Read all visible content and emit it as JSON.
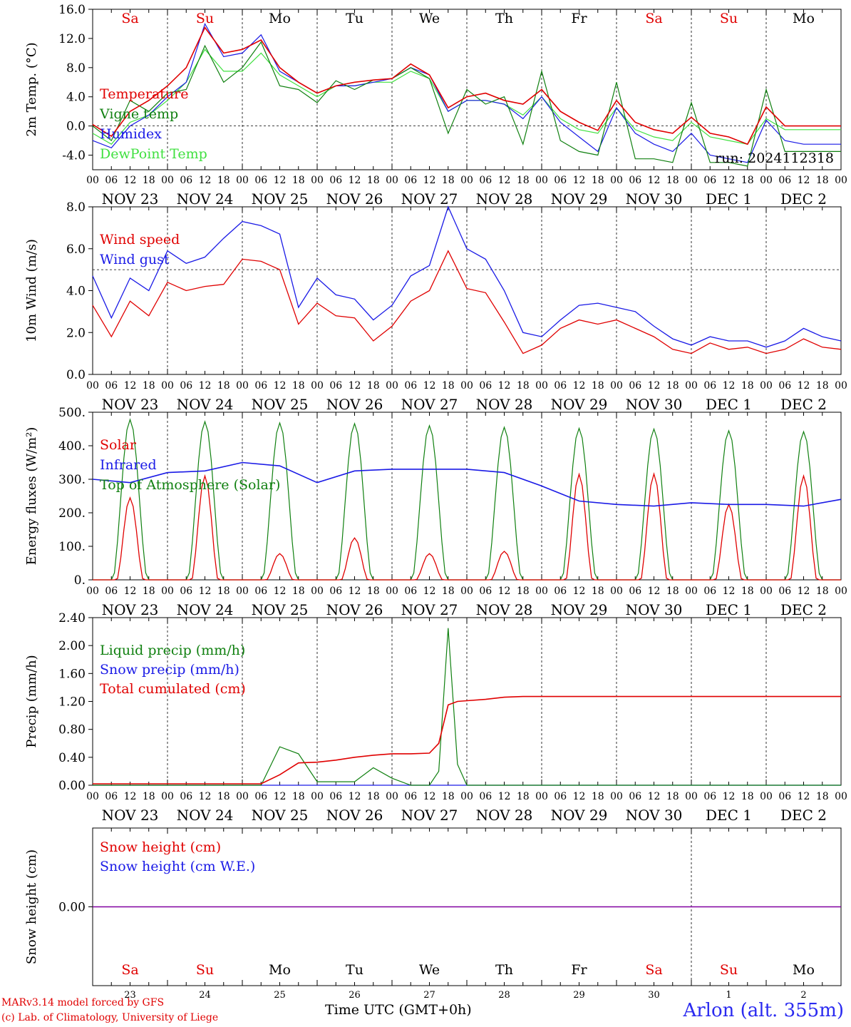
{
  "colors": {
    "red": "#e00000",
    "green": "#108010",
    "blue": "#1a1ae6",
    "light_green": "#40e040",
    "purple": "#8000a0",
    "station_blue": "#2a2af0"
  },
  "day_names": [
    "Sa",
    "Su",
    "Mo",
    "Tu",
    "We",
    "Th",
    "Fr",
    "Sa",
    "Su",
    "Mo"
  ],
  "day_name_colors": [
    "red",
    "red",
    "black",
    "black",
    "black",
    "black",
    "black",
    "red",
    "red",
    "black"
  ],
  "date_labels": [
    "NOV 23",
    "NOV 24",
    "NOV 25",
    "NOV 26",
    "NOV 27",
    "NOV 28",
    "NOV 29",
    "NOV 30",
    "DEC  1",
    "DEC  2"
  ],
  "hour_ticks": [
    "00",
    "06",
    "12",
    "18"
  ],
  "last_tick": "00",
  "day_numbers": [
    "23",
    "24",
    "25",
    "26",
    "27",
    "28",
    "29",
    "30",
    "1",
    "2"
  ],
  "footer": {
    "model": "MARv3.14 model forced by GFS",
    "lab": "(c) Lab. of Climatology, University of Liege",
    "time_label": "Time UTC (GMT+0h)",
    "station": "Arlon (alt. 355m)"
  },
  "chart_data": [
    {
      "id": "temperature",
      "type": "line",
      "ylabel": "2m Temp. (°C)",
      "ylim": [
        -6,
        16
      ],
      "yticks": [
        "16.0",
        "12.0",
        "8.0",
        "4.0",
        "0.0",
        "-4.0"
      ],
      "ytick_values": [
        16,
        12,
        8,
        4,
        0,
        -4
      ],
      "ref_line": 0,
      "annotation": "run: 2024112318",
      "x_hours": [
        0,
        6,
        12,
        18,
        24,
        30,
        36,
        42,
        48,
        54,
        60,
        66,
        72,
        78,
        84,
        90,
        96,
        102,
        108,
        114,
        120,
        126,
        132,
        138,
        144,
        150,
        156,
        162,
        168,
        174,
        180,
        186,
        192,
        198,
        204,
        210,
        216,
        222,
        228,
        234,
        240
      ],
      "series": [
        {
          "name": "Temperature",
          "color": "red",
          "values": [
            0.2,
            -1.4,
            2.0,
            3.5,
            5.5,
            8.0,
            13.5,
            10.0,
            10.5,
            11.8,
            8.0,
            6.0,
            4.5,
            5.5,
            6.0,
            6.3,
            6.5,
            8.5,
            7.0,
            2.5,
            4.0,
            4.5,
            3.5,
            3.0,
            5.0,
            2.0,
            0.5,
            -0.6,
            3.5,
            0.5,
            -0.5,
            -1.0,
            1.2,
            -1.0,
            -1.5,
            -2.5,
            2.6,
            0.0,
            0.0,
            0.0,
            0.0
          ]
        },
        {
          "name": "Vigne temp",
          "color": "green",
          "values": [
            0.0,
            -2.0,
            3.5,
            2.0,
            4.5,
            5.0,
            11.0,
            6.0,
            8.0,
            11.5,
            5.5,
            5.0,
            3.2,
            6.2,
            5.0,
            6.3,
            6.5,
            8.0,
            6.5,
            -1.0,
            5.0,
            3.0,
            4.0,
            -2.5,
            7.5,
            -2.0,
            -3.5,
            -4.0,
            6.0,
            -4.5,
            -4.5,
            -5.0,
            3.2,
            -5.0,
            -5.0,
            -5.5,
            5.0,
            -3.5,
            -3.5,
            -3.5,
            -3.5
          ]
        },
        {
          "name": "Humidex",
          "color": "blue",
          "values": [
            -2.0,
            -3.0,
            0.0,
            1.5,
            4.0,
            6.0,
            14.0,
            9.5,
            10.0,
            12.5,
            7.5,
            6.0,
            4.5,
            5.5,
            5.5,
            6.0,
            6.5,
            8.0,
            7.0,
            2.0,
            3.5,
            3.5,
            3.0,
            1.0,
            4.0,
            0.5,
            -1.5,
            -3.5,
            2.5,
            -1.0,
            -2.5,
            -3.5,
            -1.0,
            -4.0,
            -4.5,
            -5.0,
            0.8,
            -2.0,
            -2.5,
            -2.5,
            -2.5
          ]
        },
        {
          "name": "DewPoint Temp",
          "color": "light_green",
          "values": [
            -1.0,
            -2.5,
            0.5,
            1.5,
            3.5,
            6.0,
            10.5,
            7.5,
            7.5,
            10.0,
            7.0,
            5.5,
            4.0,
            5.5,
            5.5,
            6.0,
            6.0,
            7.5,
            6.5,
            2.0,
            3.5,
            3.5,
            3.0,
            1.5,
            4.0,
            1.0,
            -0.5,
            -1.0,
            2.5,
            -0.5,
            -1.5,
            -2.0,
            0.5,
            -1.5,
            -2.0,
            -2.5,
            1.0,
            -0.5,
            -0.5,
            -0.5,
            -0.5
          ]
        }
      ]
    },
    {
      "id": "wind",
      "type": "line",
      "ylabel": "10m Wind (m/s)",
      "ylim": [
        0,
        8
      ],
      "yticks": [
        "8.0",
        "6.0",
        "4.0",
        "2.0",
        "0.0"
      ],
      "ytick_values": [
        8,
        6,
        4,
        2,
        0
      ],
      "ref_line": 5,
      "x_hours": [
        0,
        6,
        12,
        18,
        24,
        30,
        36,
        42,
        48,
        54,
        60,
        66,
        72,
        78,
        84,
        90,
        96,
        102,
        108,
        114,
        120,
        126,
        132,
        138,
        144,
        150,
        156,
        162,
        168,
        174,
        180,
        186,
        192,
        198,
        204,
        210,
        216,
        222,
        228,
        234,
        240
      ],
      "series": [
        {
          "name": "Wind speed",
          "color": "red",
          "values": [
            3.3,
            1.8,
            3.5,
            2.8,
            4.4,
            4.0,
            4.2,
            4.3,
            5.5,
            5.4,
            5.0,
            2.4,
            3.4,
            2.8,
            2.7,
            1.6,
            2.3,
            3.5,
            4.0,
            5.9,
            4.1,
            3.9,
            2.5,
            1.0,
            1.4,
            2.2,
            2.6,
            2.4,
            2.6,
            2.2,
            1.8,
            1.2,
            1.0,
            1.5,
            1.2,
            1.3,
            1.0,
            1.2,
            1.7,
            1.3,
            1.2
          ]
        },
        {
          "name": "Wind gust",
          "color": "blue",
          "values": [
            4.7,
            2.7,
            4.6,
            4.0,
            5.9,
            5.3,
            5.6,
            6.5,
            7.3,
            7.1,
            6.7,
            3.2,
            4.6,
            3.8,
            3.6,
            2.6,
            3.3,
            4.7,
            5.2,
            8.0,
            6.0,
            5.5,
            4.0,
            2.0,
            1.8,
            2.6,
            3.3,
            3.4,
            3.2,
            3.0,
            2.3,
            1.7,
            1.4,
            1.8,
            1.6,
            1.6,
            1.3,
            1.6,
            2.2,
            1.8,
            1.6
          ]
        }
      ]
    },
    {
      "id": "energy",
      "type": "line",
      "ylabel": "Energy fluxes (W/m²)",
      "ylim": [
        0,
        500
      ],
      "yticks": [
        "500.",
        "400.",
        "300.",
        "200.",
        "100.",
        "0."
      ],
      "ytick_values": [
        500,
        400,
        300,
        200,
        100,
        0
      ],
      "day_peaks": {
        "toa": [
          478,
          472,
          468,
          466,
          460,
          455,
          452,
          450,
          445,
          442
        ],
        "solar": [
          245,
          310,
          78,
          125,
          78,
          85,
          315,
          316,
          225,
          310
        ]
      },
      "x_hours_infrared": [
        0,
        12,
        24,
        36,
        48,
        60,
        72,
        84,
        96,
        108,
        120,
        132,
        144,
        156,
        168,
        180,
        192,
        204,
        216,
        228,
        240
      ],
      "series": [
        {
          "name": "Solar",
          "color": "red"
        },
        {
          "name": "Infrared",
          "color": "blue",
          "values": [
            300,
            290,
            320,
            325,
            350,
            340,
            290,
            325,
            330,
            330,
            330,
            320,
            280,
            235,
            225,
            220,
            230,
            225,
            225,
            220,
            240
          ]
        },
        {
          "name": "Top of Atmosphere (Solar)",
          "color": "green"
        }
      ]
    },
    {
      "id": "precip",
      "type": "line",
      "ylabel": "Precip (mm/h)",
      "ylim": [
        0,
        2.4
      ],
      "yticks": [
        "2.40",
        "2.00",
        "1.60",
        "1.20",
        "0.80",
        "0.40",
        "0.00"
      ],
      "ytick_values": [
        2.4,
        2.0,
        1.6,
        1.2,
        0.8,
        0.4,
        0.0
      ],
      "x_hours": [
        0,
        12,
        24,
        36,
        48,
        54,
        60,
        66,
        72,
        78,
        84,
        90,
        96,
        102,
        108,
        111,
        114,
        117,
        120,
        126,
        132,
        138,
        144,
        168,
        192,
        216,
        240
      ],
      "series": [
        {
          "name": "Liquid precip (mm/h)",
          "color": "green",
          "values": [
            0.0,
            0.0,
            0.0,
            0.0,
            0.0,
            0.0,
            0.55,
            0.45,
            0.05,
            0.05,
            0.05,
            0.25,
            0.1,
            0.0,
            0.0,
            0.2,
            2.25,
            0.3,
            0.0,
            0.0,
            0.0,
            0.0,
            0.0,
            0.0,
            0.0,
            0.0,
            0.0
          ]
        },
        {
          "name": "Snow precip (mm/h)",
          "color": "blue",
          "values": [
            0.0,
            0.0,
            0.0,
            0.0,
            0.0,
            0.0,
            0.0,
            0.0,
            0.0,
            0.0,
            0.0,
            0.0,
            0.0,
            0.0,
            0.0,
            0.0,
            0.0,
            0.0,
            0.0,
            0.0,
            0.0,
            0.0,
            0.0,
            0.0,
            0.0,
            0.0,
            0.0
          ]
        },
        {
          "name": "Total cumulated (cm)",
          "color": "red",
          "values": [
            0.02,
            0.02,
            0.02,
            0.02,
            0.02,
            0.02,
            0.15,
            0.32,
            0.33,
            0.36,
            0.4,
            0.43,
            0.45,
            0.45,
            0.46,
            0.6,
            1.15,
            1.2,
            1.21,
            1.23,
            1.26,
            1.27,
            1.27,
            1.27,
            1.27,
            1.27,
            1.27
          ]
        }
      ]
    },
    {
      "id": "snow",
      "type": "line",
      "ylabel": "Snow height (cm)",
      "ylim": [
        -1,
        1
      ],
      "yticks": [
        "0.00"
      ],
      "ytick_values": [
        0
      ],
      "x_hours": [
        0,
        240
      ],
      "series": [
        {
          "name": "Snow height (cm)",
          "color": "red",
          "values": [
            0,
            0
          ]
        },
        {
          "name": "Snow height (cm W.E.)",
          "color": "blue",
          "values": [
            0,
            0
          ]
        }
      ]
    }
  ]
}
